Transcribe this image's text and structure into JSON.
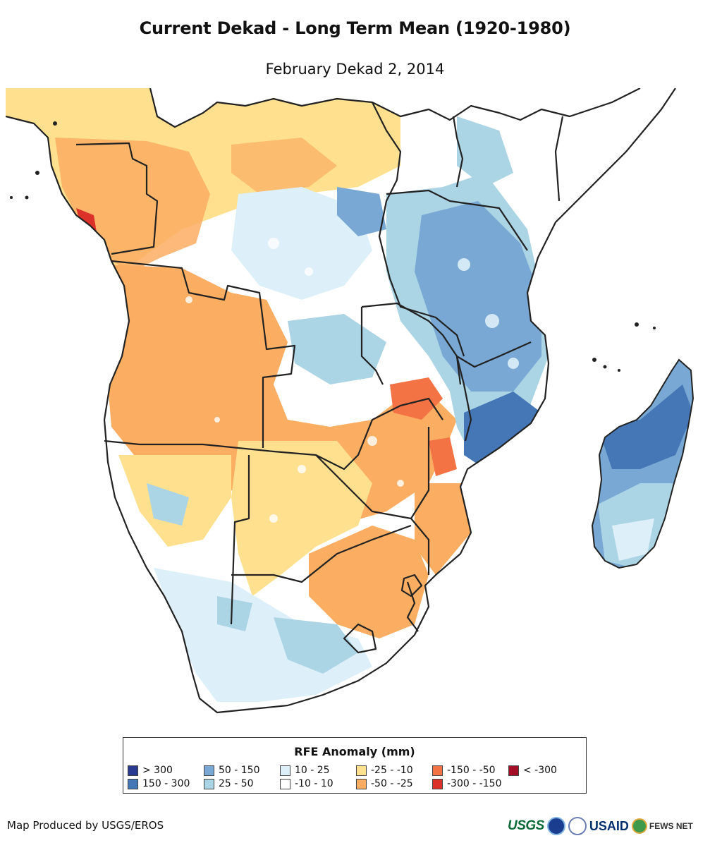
{
  "title": "Current Dekad - Long Term Mean (1920-1980)",
  "subtitle": "February Dekad 2, 2014",
  "legend": {
    "title": "RFE Anomaly (mm)",
    "items": [
      {
        "label": "> 300",
        "color": "#2b3a91"
      },
      {
        "label": "150 - 300",
        "color": "#4577b7"
      },
      {
        "label": "50 - 150",
        "color": "#78a8d3"
      },
      {
        "label": "25 - 50",
        "color": "#abd4e5"
      },
      {
        "label": "10 - 25",
        "color": "#ddeff8"
      },
      {
        "label": "-10 - 10",
        "color": "#ffffff"
      },
      {
        "label": "-25 - -10",
        "color": "#fee08f"
      },
      {
        "label": "-50 - -25",
        "color": "#fbad61"
      },
      {
        "label": "-150 - -50",
        "color": "#f37344"
      },
      {
        "label": "-300 - -150",
        "color": "#dc3128"
      },
      {
        "label": "< -300",
        "color": "#a40d26"
      }
    ]
  },
  "credit": "Map Produced by USGS/EROS",
  "logos": {
    "usgs": "USGS",
    "usaid": "USAID",
    "fews": "FEWS NET"
  }
}
